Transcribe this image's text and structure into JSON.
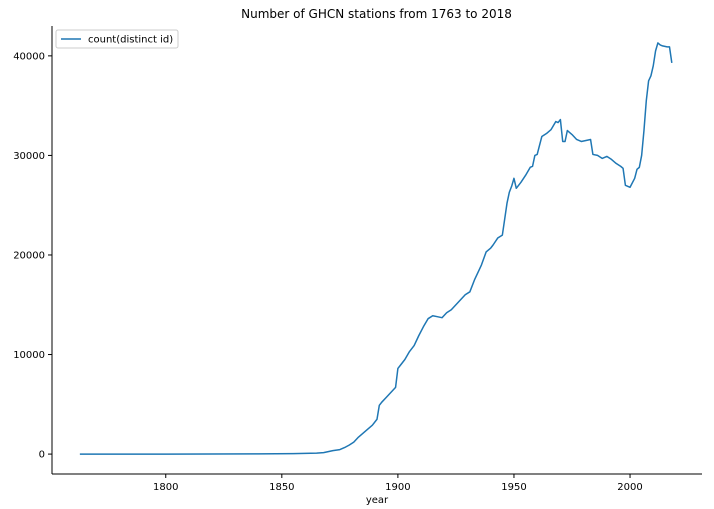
{
  "chart_data": {
    "type": "line",
    "title": "Number of GHCN stations from 1763 to 2018",
    "xlabel": "year",
    "ylabel": "",
    "xlim": [
      1751,
      2031
    ],
    "ylim": [
      -2000,
      43000
    ],
    "xticks": [
      1800,
      1850,
      1900,
      1950,
      2000
    ],
    "yticks": [
      0,
      10000,
      20000,
      30000,
      40000
    ],
    "grid": false,
    "legend_position": "top-left",
    "series": [
      {
        "name": "count(distinct id)",
        "color": "#1f77b4",
        "x": [
          1763,
          1800,
          1840,
          1855,
          1865,
          1868,
          1870,
          1872,
          1875,
          1877,
          1879,
          1881,
          1883,
          1885,
          1887,
          1889,
          1891,
          1892,
          1893,
          1895,
          1897,
          1899,
          1900,
          1901,
          1903,
          1905,
          1907,
          1909,
          1911,
          1913,
          1915,
          1917,
          1919,
          1921,
          1923,
          1925,
          1927,
          1929,
          1931,
          1933,
          1935,
          1936,
          1938,
          1940,
          1941,
          1943,
          1945,
          1947,
          1948,
          1949,
          1950,
          1951,
          1952,
          1953,
          1955,
          1957,
          1958,
          1959,
          1960,
          1961,
          1962,
          1964,
          1966,
          1968,
          1969,
          1970,
          1971,
          1972,
          1973,
          1975,
          1977,
          1979,
          1981,
          1983,
          1984,
          1986,
          1988,
          1990,
          1992,
          1994,
          1996,
          1997,
          1998,
          2000,
          2002,
          2003,
          2004,
          2005,
          2006,
          2007,
          2008,
          2009,
          2010,
          2011,
          2012,
          2013,
          2014,
          2016,
          2017,
          2018
        ],
        "y": [
          0,
          0,
          20,
          50,
          100,
          150,
          250,
          350,
          450,
          650,
          900,
          1200,
          1700,
          2100,
          2500,
          2900,
          3500,
          4900,
          5200,
          5700,
          6200,
          6700,
          8600,
          8900,
          9500,
          10300,
          10900,
          11900,
          12800,
          13600,
          13900,
          13800,
          13700,
          14200,
          14500,
          15000,
          15500,
          16000,
          16300,
          17500,
          18500,
          19000,
          20300,
          20700,
          21000,
          21700,
          22000,
          25200,
          26300,
          26900,
          27700,
          26700,
          27000,
          27300,
          28000,
          28800,
          28900,
          30000,
          30100,
          31000,
          31900,
          32200,
          32600,
          33400,
          33300,
          33600,
          31400,
          31400,
          32500,
          32100,
          31600,
          31400,
          31500,
          31600,
          30100,
          30000,
          29700,
          29900,
          29600,
          29200,
          28900,
          28700,
          27000,
          26800,
          27700,
          28600,
          28800,
          30000,
          32500,
          35500,
          37500,
          38000,
          39000,
          40500,
          41300,
          41100,
          41000,
          40900,
          40900,
          39300
        ]
      }
    ]
  }
}
